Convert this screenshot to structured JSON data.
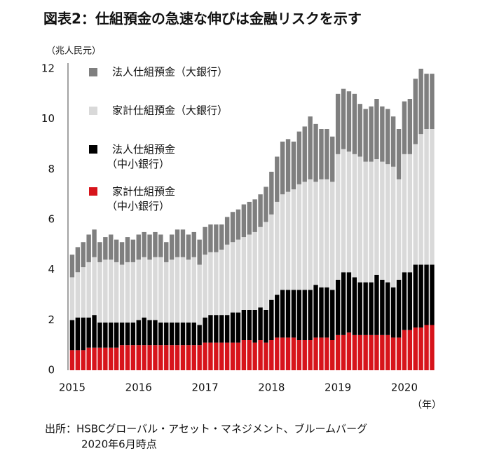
{
  "chart_data": {
    "type": "stacked_bar",
    "title": "図表2：仕組預金の急速な伸びは金融リスクを示す",
    "y_unit": "（兆人民元）",
    "x_unit": "（年）",
    "source": [
      "出所：HSBCグローバル・アセット・マネジメント、ブルームバーグ",
      "2020年6月時点"
    ],
    "categories": [
      "2015",
      null,
      null,
      null,
      null,
      null,
      null,
      null,
      null,
      null,
      null,
      null,
      "2016",
      null,
      null,
      null,
      null,
      null,
      null,
      null,
      null,
      null,
      null,
      null,
      "2017",
      null,
      null,
      null,
      null,
      null,
      null,
      null,
      null,
      null,
      null,
      null,
      "2018",
      null,
      null,
      null,
      null,
      null,
      null,
      null,
      null,
      null,
      null,
      null,
      "2019",
      null,
      null,
      null,
      null,
      null,
      null,
      null,
      null,
      null,
      null,
      null,
      "2020",
      null,
      null,
      null,
      null,
      null
    ],
    "ylim": [
      0,
      12
    ],
    "yticks": [
      0,
      2,
      4,
      6,
      8,
      10,
      12
    ],
    "grid": false,
    "series": [
      {
        "name": "家計仕組預金\n（中小銀行）",
        "color": "#d7141b",
        "values": [
          0.8,
          0.8,
          0.8,
          0.9,
          0.9,
          0.9,
          0.9,
          0.9,
          0.9,
          1.0,
          1.0,
          1.0,
          1.0,
          1.0,
          1.0,
          1.0,
          1.0,
          1.0,
          1.0,
          1.0,
          1.0,
          1.0,
          1.0,
          1.0,
          1.1,
          1.1,
          1.1,
          1.1,
          1.1,
          1.1,
          1.1,
          1.2,
          1.2,
          1.1,
          1.2,
          1.1,
          1.2,
          1.3,
          1.3,
          1.3,
          1.3,
          1.2,
          1.2,
          1.2,
          1.3,
          1.3,
          1.3,
          1.2,
          1.4,
          1.4,
          1.5,
          1.4,
          1.4,
          1.4,
          1.4,
          1.4,
          1.4,
          1.4,
          1.3,
          1.3,
          1.6,
          1.6,
          1.7,
          1.7,
          1.8,
          1.8
        ]
      },
      {
        "name": "法人仕組預金\n（中小銀行）",
        "color": "#000000",
        "values": [
          1.2,
          1.3,
          1.3,
          1.2,
          1.3,
          1.0,
          1.0,
          1.0,
          1.0,
          0.9,
          0.9,
          0.9,
          1.0,
          1.1,
          1.0,
          1.0,
          0.9,
          0.9,
          0.9,
          0.9,
          0.9,
          0.9,
          0.9,
          0.8,
          1.0,
          1.1,
          1.1,
          1.1,
          1.1,
          1.2,
          1.2,
          1.2,
          1.2,
          1.3,
          1.3,
          1.3,
          1.6,
          1.7,
          1.9,
          1.9,
          1.9,
          2.0,
          2.0,
          2.0,
          2.1,
          2.0,
          2.0,
          2.0,
          2.2,
          2.5,
          2.4,
          2.3,
          2.1,
          2.1,
          2.1,
          2.4,
          2.2,
          2.1,
          2.0,
          2.3,
          2.3,
          2.3,
          2.5,
          2.5,
          2.4,
          2.4
        ]
      },
      {
        "name": "家計仕組預金（大銀行）",
        "color": "#d9d9d9",
        "values": [
          1.7,
          1.8,
          2.0,
          2.2,
          2.3,
          2.4,
          2.5,
          2.5,
          2.4,
          2.3,
          2.4,
          2.4,
          2.4,
          2.4,
          2.4,
          2.5,
          2.6,
          2.4,
          2.5,
          2.6,
          2.6,
          2.5,
          2.6,
          2.4,
          2.5,
          2.5,
          2.5,
          2.6,
          2.8,
          2.8,
          2.9,
          2.9,
          3.0,
          3.1,
          3.2,
          3.5,
          3.4,
          3.7,
          3.8,
          3.9,
          4.0,
          4.2,
          4.3,
          4.4,
          4.1,
          4.3,
          4.3,
          4.3,
          5.0,
          4.9,
          4.8,
          4.9,
          5.0,
          4.8,
          4.8,
          4.6,
          4.7,
          4.7,
          4.8,
          4.0,
          4.7,
          4.7,
          4.8,
          5.2,
          5.4,
          5.4
        ]
      },
      {
        "name": "法人仕組預金（大銀行）",
        "color": "#7f7f7f",
        "values": [
          0.9,
          1.0,
          1.0,
          1.1,
          1.1,
          0.8,
          0.9,
          1.0,
          0.9,
          0.9,
          1.0,
          0.9,
          1.0,
          1.0,
          1.0,
          1.0,
          0.9,
          0.8,
          1.0,
          1.1,
          1.1,
          1.0,
          1.0,
          1.0,
          1.1,
          1.1,
          1.1,
          1.0,
          1.1,
          1.2,
          1.2,
          1.3,
          1.3,
          1.3,
          1.3,
          1.4,
          1.7,
          1.8,
          2.1,
          2.1,
          1.9,
          2.1,
          2.2,
          2.5,
          2.3,
          2.0,
          2.0,
          1.8,
          2.4,
          2.4,
          2.4,
          2.4,
          2.1,
          2.1,
          2.2,
          2.4,
          2.2,
          2.2,
          2.0,
          2.0,
          2.1,
          2.2,
          2.6,
          2.6,
          2.2,
          2.2
        ]
      }
    ]
  }
}
